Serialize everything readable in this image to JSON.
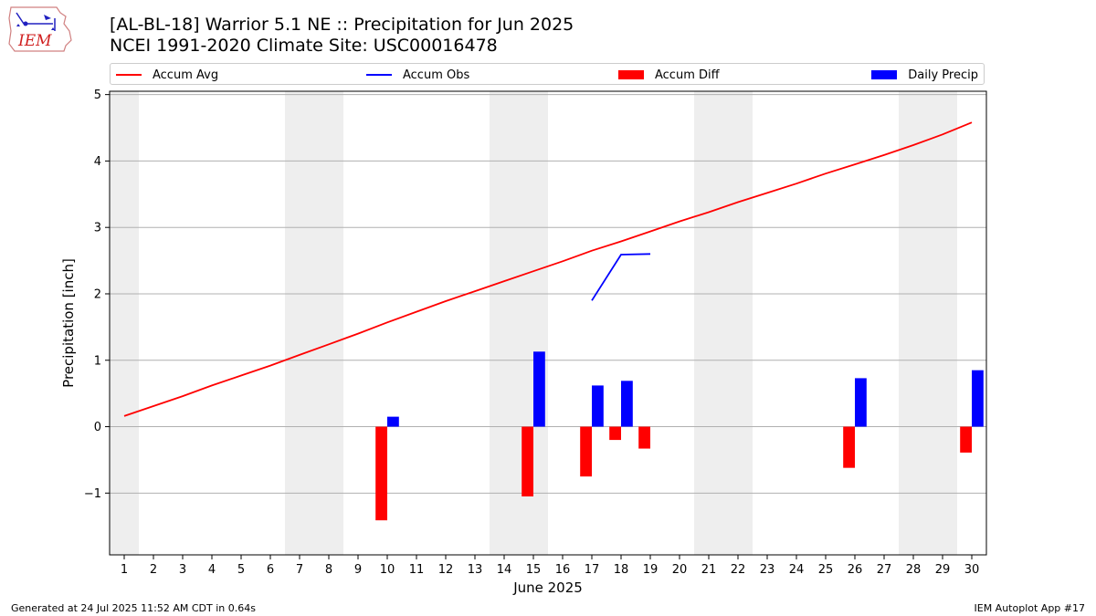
{
  "header": {
    "title_line1": "[AL-BL-18] Warrior 5.1 NE :: Precipitation for Jun 2025",
    "title_line2": "NCEI 1991-2020 Climate Site: USC00016478"
  },
  "logo": {
    "text": "IEM"
  },
  "legend": {
    "items": [
      {
        "label": "Accum Avg",
        "kind": "line",
        "color": "#ff0000"
      },
      {
        "label": "Accum Obs",
        "kind": "line",
        "color": "#0000ff"
      },
      {
        "label": "Accum Diff",
        "kind": "patch",
        "color": "#ff0000"
      },
      {
        "label": "Daily Precip",
        "kind": "patch",
        "color": "#0000ff"
      }
    ]
  },
  "footer": {
    "left": "Generated at 24 Jul 2025 11:52 AM CDT in 0.64s",
    "right": "IEM Autoplot App #17"
  },
  "chart_data": {
    "type": "bar",
    "xlabel": "June 2025",
    "ylabel": "Precipitation [inch]",
    "xlim": [
      0.5,
      30.5
    ],
    "ylim": [
      -1.93,
      5.05
    ],
    "yticks": [
      -1,
      0,
      1,
      2,
      3,
      4,
      5
    ],
    "ytick_labels": [
      "−1",
      "0",
      "1",
      "2",
      "3",
      "4",
      "5"
    ],
    "xticks": [
      1,
      2,
      3,
      4,
      5,
      6,
      7,
      8,
      9,
      10,
      11,
      12,
      13,
      14,
      15,
      16,
      17,
      18,
      19,
      20,
      21,
      22,
      23,
      24,
      25,
      26,
      27,
      28,
      29,
      30
    ],
    "grid": "horizontal",
    "legend_position": "top",
    "weekend_shading": [
      [
        0.5,
        1.5
      ],
      [
        6.5,
        8.5
      ],
      [
        13.5,
        15.5
      ],
      [
        20.5,
        22.5
      ],
      [
        27.5,
        29.5
      ]
    ],
    "colors": {
      "avg": "#ff0000",
      "obs": "#0000ff",
      "diff": "#ff0000",
      "daily": "#0000ff",
      "shade": "#eeeeee",
      "grid": "#b0b0b0"
    },
    "series": [
      {
        "name": "Accum Avg",
        "kind": "line",
        "x": [
          1,
          2,
          3,
          4,
          5,
          6,
          7,
          8,
          9,
          10,
          11,
          12,
          13,
          14,
          15,
          16,
          17,
          18,
          19,
          20,
          21,
          22,
          23,
          24,
          25,
          26,
          27,
          28,
          29,
          30
        ],
        "y": [
          0.16,
          0.31,
          0.46,
          0.62,
          0.77,
          0.92,
          1.08,
          1.24,
          1.4,
          1.57,
          1.73,
          1.89,
          2.04,
          2.19,
          2.34,
          2.49,
          2.65,
          2.79,
          2.94,
          3.09,
          3.23,
          3.38,
          3.52,
          3.66,
          3.81,
          3.95,
          4.09,
          4.24,
          4.4,
          4.58
        ]
      },
      {
        "name": "Accum Obs",
        "kind": "line",
        "x": [
          17,
          18,
          19
        ],
        "y": [
          1.9,
          2.59,
          2.6
        ]
      },
      {
        "name": "Accum Diff",
        "kind": "bar",
        "x": [
          10,
          15,
          17,
          18,
          19,
          26,
          30
        ],
        "y": [
          -1.41,
          -1.05,
          -0.75,
          -0.2,
          -0.33,
          -0.62,
          -0.39
        ]
      },
      {
        "name": "Daily Precip",
        "kind": "bar",
        "x": [
          10,
          15,
          17,
          18,
          26,
          30
        ],
        "y": [
          0.15,
          1.13,
          0.62,
          0.69,
          0.73,
          0.85
        ]
      }
    ]
  }
}
